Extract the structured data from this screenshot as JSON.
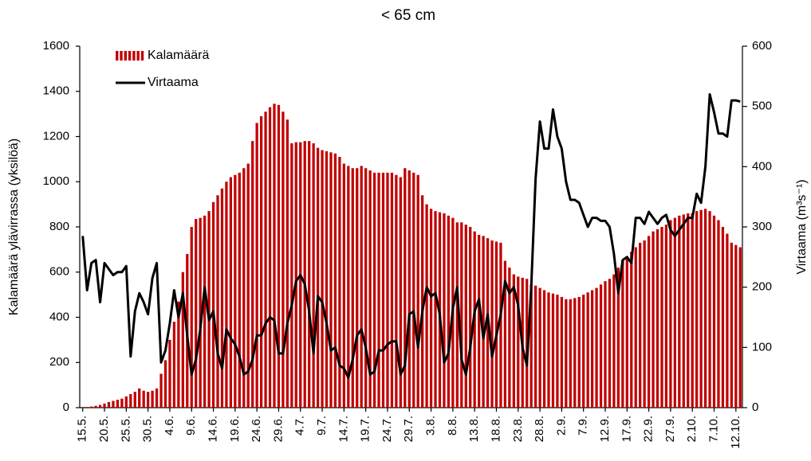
{
  "chart_data": {
    "type": "bar-line",
    "title": "< 65 cm",
    "y_label": "Kalamäärä ylävirrassa (yksilöä)",
    "y2_label": "Virtaama (m³s⁻¹)",
    "categories": [
      "15.5.",
      null,
      null,
      null,
      null,
      "20.5.",
      null,
      null,
      null,
      null,
      "25.5.",
      null,
      null,
      null,
      null,
      "30.5.",
      null,
      null,
      null,
      null,
      "4.6.",
      null,
      null,
      null,
      null,
      "9.6.",
      null,
      null,
      null,
      null,
      "14.6.",
      null,
      null,
      null,
      null,
      "19.6.",
      null,
      null,
      null,
      null,
      "24.6.",
      null,
      null,
      null,
      null,
      "29.6.",
      null,
      null,
      null,
      null,
      "4.7.",
      null,
      null,
      null,
      null,
      "9.7.",
      null,
      null,
      null,
      null,
      "14.7.",
      null,
      null,
      null,
      null,
      "19.7.",
      null,
      null,
      null,
      null,
      "24.7.",
      null,
      null,
      null,
      null,
      "29.7.",
      null,
      null,
      null,
      null,
      "3.8.",
      null,
      null,
      null,
      null,
      "8.8.",
      null,
      null,
      null,
      null,
      "13.8.",
      null,
      null,
      null,
      null,
      "18.8.",
      null,
      null,
      null,
      null,
      "23.8.",
      null,
      null,
      null,
      null,
      "28.8.",
      null,
      null,
      null,
      null,
      "2.9.",
      null,
      null,
      null,
      null,
      "7.9.",
      null,
      null,
      null,
      null,
      "12.9.",
      null,
      null,
      null,
      null,
      "17.9.",
      null,
      null,
      null,
      null,
      "22.9.",
      null,
      null,
      null,
      null,
      "27.9.",
      null,
      null,
      null,
      null,
      "2.10.",
      null,
      null,
      null,
      null,
      "7.10.",
      null,
      null,
      null,
      null,
      "12.10.",
      null
    ],
    "series": [
      {
        "name": "Kalamäärä",
        "color": "#c00000",
        "values": [
          0,
          3,
          5,
          8,
          12,
          18,
          25,
          30,
          35,
          40,
          50,
          60,
          70,
          85,
          75,
          70,
          75,
          85,
          150,
          210,
          300,
          380,
          470,
          600,
          680,
          800,
          835,
          840,
          850,
          870,
          910,
          940,
          970,
          1000,
          1020,
          1030,
          1040,
          1060,
          1080,
          1180,
          1260,
          1290,
          1310,
          1330,
          1345,
          1340,
          1310,
          1275,
          1170,
          1175,
          1175,
          1180,
          1180,
          1170,
          1150,
          1140,
          1135,
          1130,
          1125,
          1110,
          1080,
          1070,
          1060,
          1060,
          1070,
          1060,
          1050,
          1040,
          1040,
          1040,
          1040,
          1040,
          1030,
          1020,
          1060,
          1050,
          1040,
          1030,
          940,
          900,
          880,
          870,
          865,
          860,
          850,
          840,
          820,
          820,
          810,
          800,
          780,
          765,
          760,
          750,
          740,
          735,
          730,
          650,
          620,
          590,
          580,
          575,
          570,
          545,
          540,
          530,
          520,
          510,
          505,
          500,
          490,
          480,
          480,
          485,
          490,
          500,
          510,
          520,
          530,
          545,
          560,
          570,
          590,
          620,
          650,
          670,
          690,
          710,
          730,
          740,
          760,
          780,
          790,
          800,
          810,
          830,
          840,
          850,
          855,
          860,
          860,
          870,
          875,
          880,
          870,
          850,
          830,
          800,
          770,
          730,
          720,
          710
        ]
      },
      {
        "name": "Virtaama",
        "color": "#000000",
        "axis": "y2",
        "values": [
          285,
          195,
          240,
          245,
          175,
          240,
          230,
          220,
          225,
          225,
          235,
          85,
          160,
          190,
          175,
          155,
          215,
          240,
          75,
          95,
          140,
          195,
          150,
          190,
          120,
          55,
          80,
          130,
          200,
          145,
          160,
          90,
          65,
          130,
          115,
          105,
          85,
          55,
          60,
          80,
          120,
          120,
          140,
          150,
          145,
          90,
          90,
          140,
          170,
          210,
          220,
          205,
          160,
          90,
          185,
          175,
          140,
          95,
          100,
          70,
          65,
          50,
          80,
          120,
          130,
          100,
          55,
          60,
          95,
          95,
          105,
          110,
          110,
          55,
          70,
          155,
          160,
          100,
          160,
          200,
          185,
          190,
          155,
          75,
          90,
          165,
          200,
          80,
          55,
          100,
          160,
          180,
          115,
          155,
          85,
          120,
          155,
          210,
          190,
          200,
          170,
          100,
          70,
          200,
          380,
          475,
          430,
          430,
          495,
          450,
          430,
          375,
          345,
          345,
          340,
          320,
          300,
          315,
          315,
          310,
          310,
          300,
          255,
          190,
          245,
          250,
          240,
          315,
          315,
          305,
          325,
          315,
          305,
          315,
          320,
          295,
          285,
          295,
          305,
          315,
          315,
          355,
          340,
          400,
          520,
          490,
          455,
          455,
          450,
          510,
          510,
          508
        ]
      }
    ],
    "ylim": [
      0,
      1600
    ],
    "yticks": [
      0,
      200,
      400,
      600,
      800,
      1000,
      1200,
      1400,
      1600
    ],
    "y2lim": [
      0,
      600
    ],
    "y2ticks": [
      0,
      100,
      200,
      300,
      400,
      500,
      600
    ],
    "legend": "upper-left"
  }
}
